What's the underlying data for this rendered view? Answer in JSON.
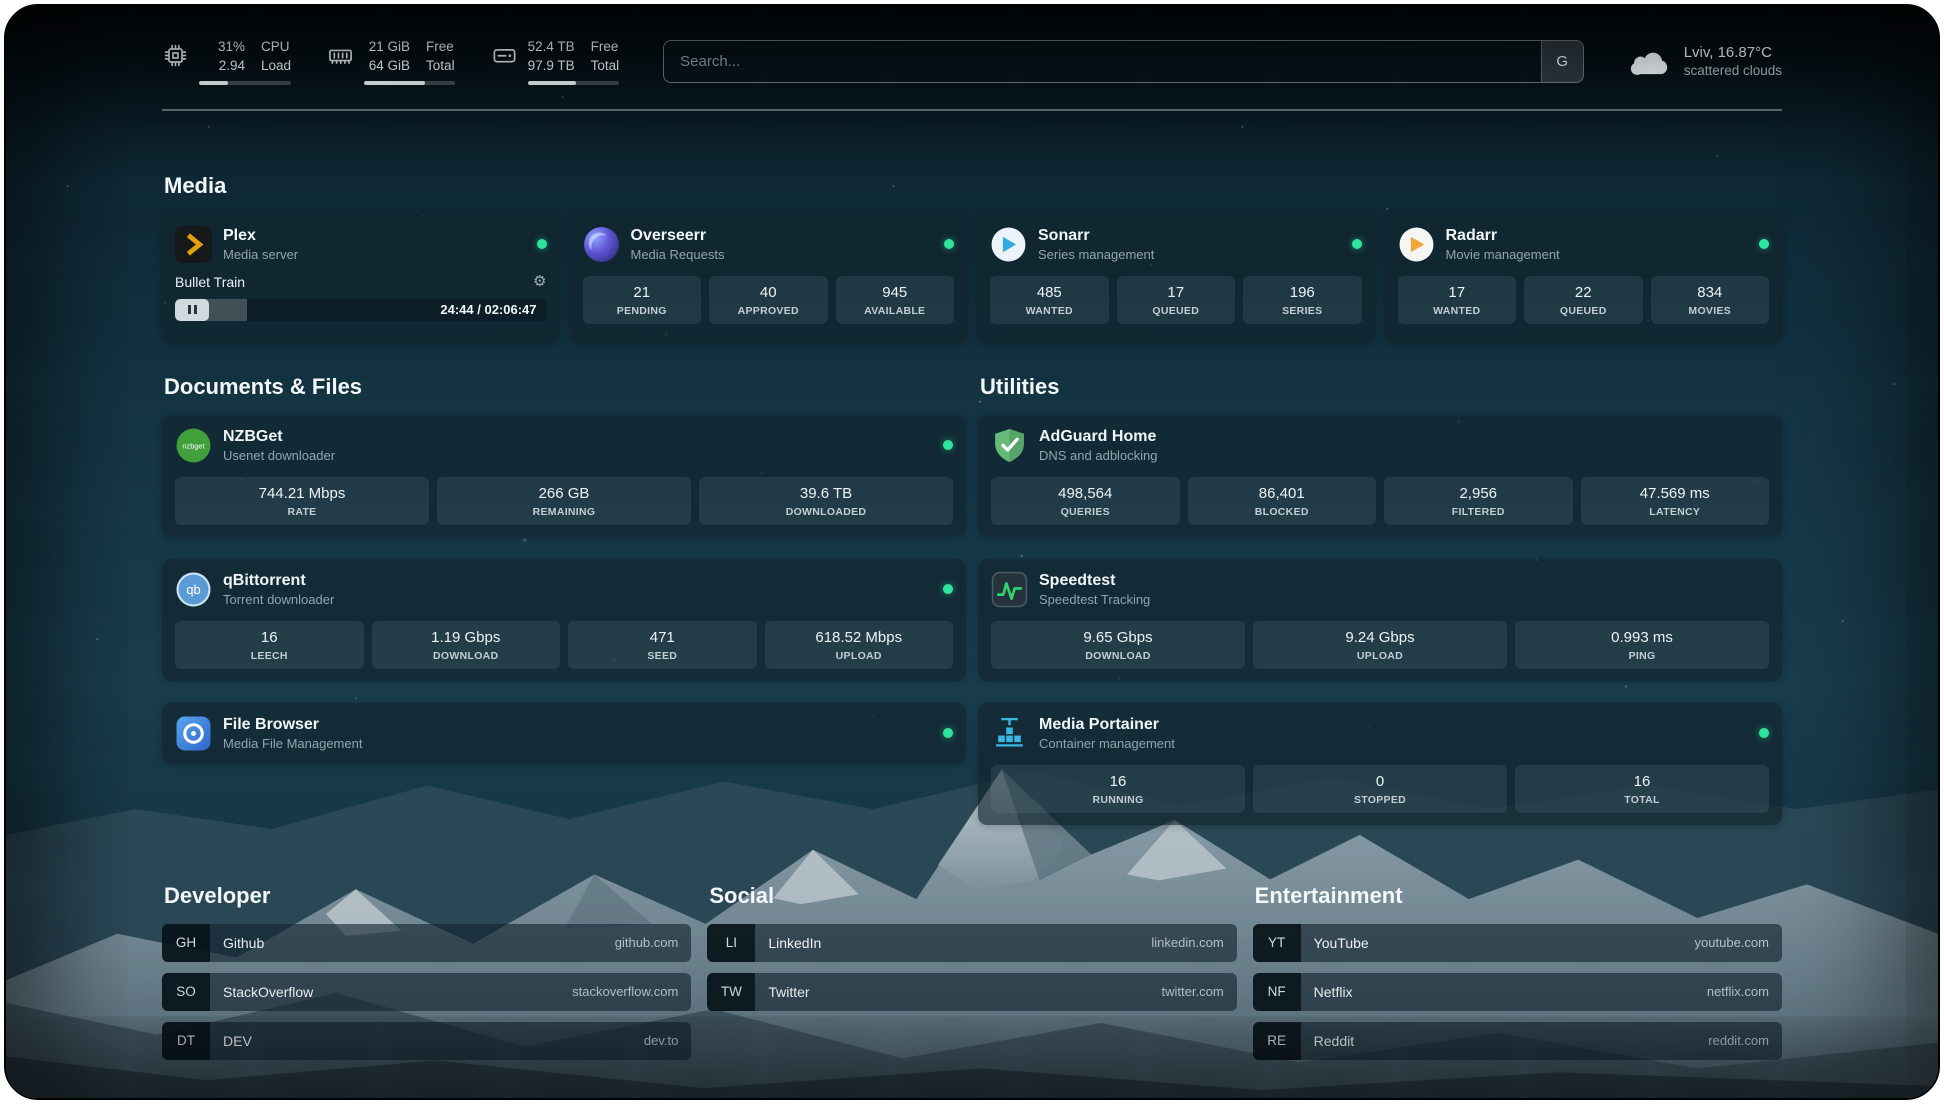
{
  "colors": {
    "status_online": "#2ee59d",
    "bar_fill": "#e3e9ec",
    "plex_accent": "#e5a00d"
  },
  "topbar": {
    "cpu": {
      "usage": "31%",
      "load": "2.94",
      "label_top": "CPU",
      "label_bottom": "Load",
      "bar_percent": 31
    },
    "memory": {
      "free": "21 GiB",
      "total": "64 GiB",
      "label_top": "Free",
      "label_bottom": "Total",
      "bar_percent": 67
    },
    "disk": {
      "free": "52.4 TB",
      "total": "97.9 TB",
      "label_top": "Free",
      "label_bottom": "Total",
      "bar_percent": 53
    },
    "search": {
      "placeholder": "Search...",
      "provider_button": "G"
    },
    "weather": {
      "location": "Lviv, 16.87°C",
      "description": "scattered clouds"
    }
  },
  "media": {
    "title": "Media",
    "plex": {
      "name": "Plex",
      "subtitle": "Media server",
      "now_playing": "Bullet Train",
      "time": "24:44 / 02:06:47",
      "progress_percent": 19.5
    },
    "overseerr": {
      "name": "Overseerr",
      "subtitle": "Media Requests",
      "stats": [
        {
          "value": "21",
          "label": "PENDING"
        },
        {
          "value": "40",
          "label": "APPROVED"
        },
        {
          "value": "945",
          "label": "AVAILABLE"
        }
      ]
    },
    "sonarr": {
      "name": "Sonarr",
      "subtitle": "Series management",
      "stats": [
        {
          "value": "485",
          "label": "WANTED"
        },
        {
          "value": "17",
          "label": "QUEUED"
        },
        {
          "value": "196",
          "label": "SERIES"
        }
      ]
    },
    "radarr": {
      "name": "Radarr",
      "subtitle": "Movie management",
      "stats": [
        {
          "value": "17",
          "label": "WANTED"
        },
        {
          "value": "22",
          "label": "QUEUED"
        },
        {
          "value": "834",
          "label": "MOVIES"
        }
      ]
    }
  },
  "documents": {
    "title": "Documents & Files",
    "nzbget": {
      "name": "NZBGet",
      "subtitle": "Usenet downloader",
      "stats": [
        {
          "value": "744.21 Mbps",
          "label": "RATE"
        },
        {
          "value": "266 GB",
          "label": "REMAINING"
        },
        {
          "value": "39.6 TB",
          "label": "DOWNLOADED"
        }
      ]
    },
    "qbittorrent": {
      "name": "qBittorrent",
      "subtitle": "Torrent downloader",
      "stats": [
        {
          "value": "16",
          "label": "LEECH"
        },
        {
          "value": "1.19 Gbps",
          "label": "DOWNLOAD"
        },
        {
          "value": "471",
          "label": "SEED"
        },
        {
          "value": "618.52 Mbps",
          "label": "UPLOAD"
        }
      ]
    },
    "filebrowser": {
      "name": "File Browser",
      "subtitle": "Media File Management"
    }
  },
  "utilities": {
    "title": "Utilities",
    "adguard": {
      "name": "AdGuard Home",
      "subtitle": "DNS and adblocking",
      "stats": [
        {
          "value": "498,564",
          "label": "QUERIES"
        },
        {
          "value": "86,401",
          "label": "BLOCKED"
        },
        {
          "value": "2,956",
          "label": "FILTERED"
        },
        {
          "value": "47.569 ms",
          "label": "LATENCY"
        }
      ]
    },
    "speedtest": {
      "name": "Speedtest",
      "subtitle": "Speedtest Tracking",
      "stats": [
        {
          "value": "9.65 Gbps",
          "label": "DOWNLOAD"
        },
        {
          "value": "9.24 Gbps",
          "label": "UPLOAD"
        },
        {
          "value": "0.993 ms",
          "label": "PING"
        }
      ]
    },
    "portainer": {
      "name": "Media Portainer",
      "subtitle": "Container management",
      "stats": [
        {
          "value": "16",
          "label": "RUNNING"
        },
        {
          "value": "0",
          "label": "STOPPED"
        },
        {
          "value": "16",
          "label": "TOTAL"
        }
      ]
    }
  },
  "bookmarks": {
    "developer": {
      "title": "Developer",
      "items": [
        {
          "abbr": "GH",
          "name": "Github",
          "url": "github.com"
        },
        {
          "abbr": "SO",
          "name": "StackOverflow",
          "url": "stackoverflow.com"
        },
        {
          "abbr": "DT",
          "name": "DEV",
          "url": "dev.to"
        }
      ]
    },
    "social": {
      "title": "Social",
      "items": [
        {
          "abbr": "LI",
          "name": "LinkedIn",
          "url": "linkedin.com"
        },
        {
          "abbr": "TW",
          "name": "Twitter",
          "url": "twitter.com"
        }
      ]
    },
    "entertainment": {
      "title": "Entertainment",
      "items": [
        {
          "abbr": "YT",
          "name": "YouTube",
          "url": "youtube.com"
        },
        {
          "abbr": "NF",
          "name": "Netflix",
          "url": "netflix.com"
        },
        {
          "abbr": "RE",
          "name": "Reddit",
          "url": "reddit.com"
        }
      ]
    }
  },
  "icons": {
    "gear": "⚙",
    "nzbget_text": "nzbget",
    "qbittorrent_text": "qb"
  }
}
